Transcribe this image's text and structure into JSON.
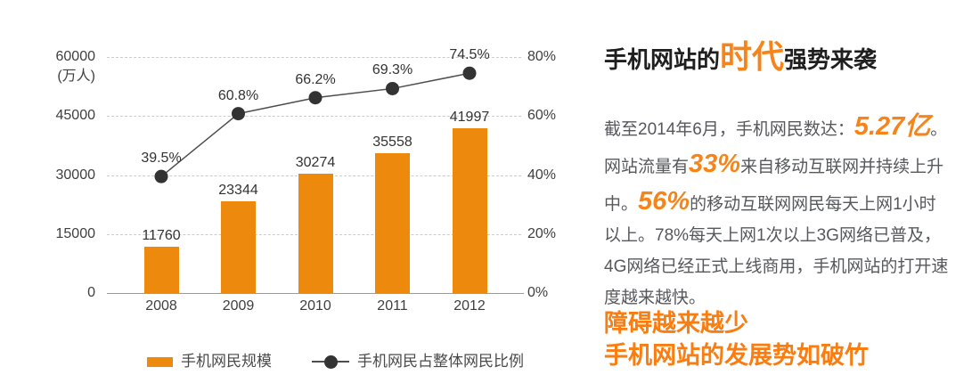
{
  "colors": {
    "bar_orange": "#ED8A0E",
    "line_dark": "#4d4d4d",
    "dot_dark": "#333333",
    "text_accent_orange": "#F5851A",
    "tagline_orange": "#F97D11",
    "body_gray": "#57585c"
  },
  "chart_data": {
    "type": "bar",
    "title": "",
    "categories": [
      "2008",
      "2009",
      "2010",
      "2011",
      "2012"
    ],
    "series": [
      {
        "name": "手机网民规模",
        "type": "bar",
        "axis": "left",
        "color": "#ED8A0E",
        "values": [
          11760,
          23344,
          30274,
          35558,
          41997
        ],
        "labels": [
          "11760",
          "23344",
          "30274",
          "35558",
          "41997"
        ]
      },
      {
        "name": "手机网民占整体网民比例",
        "type": "line",
        "axis": "right",
        "color": "#333333",
        "values": [
          39.5,
          60.8,
          66.2,
          69.3,
          74.5
        ],
        "labels": [
          "39.5%",
          "60.8%",
          "66.2%",
          "69.3%",
          "74.5%"
        ]
      }
    ],
    "left_axis": {
      "unit": "(万人)",
      "ticks": [
        "0",
        "15000",
        "30000",
        "45000",
        "60000"
      ],
      "min": 0,
      "max": 60000
    },
    "right_axis": {
      "ticks": [
        "0%",
        "20%",
        "40%",
        "60%",
        "80%"
      ],
      "min": 0,
      "max": 80
    },
    "grid": "dashed-horizontal",
    "legend_position": "bottom"
  },
  "article": {
    "title": {
      "prefix": "手机网站的",
      "highlight": "时代",
      "suffix": "强势来袭"
    },
    "paragraph": [
      {
        "t": "截至2014年6月，手机网民数达：",
        "style": "normal"
      },
      {
        "t": "5.27亿",
        "style": "big"
      },
      {
        "t": "。网站流量有",
        "style": "normal"
      },
      {
        "t": "33%",
        "style": "big"
      },
      {
        "t": "来自移动互联网并持续上升中。",
        "style": "normal"
      },
      {
        "t": "56%",
        "style": "big"
      },
      {
        "t": "的移动互联网网民每天上网1小时以上。78%每天上网1次以上3G网络已普及，4G网络已经正式上线商用，手机网站的打开速度越来越快。",
        "style": "normal"
      }
    ],
    "tagline": [
      "障碍越来越少",
      "手机网站的发展势如破竹"
    ]
  }
}
